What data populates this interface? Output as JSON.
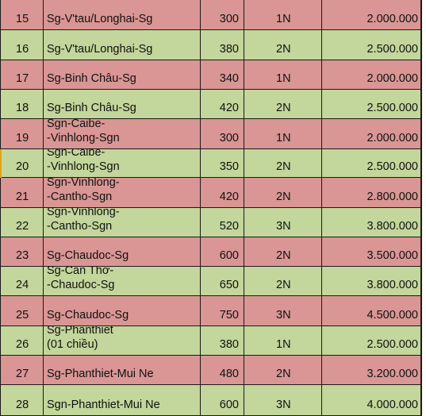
{
  "colors": {
    "pink": "#d99694",
    "green": "#c3d69b",
    "grid": "#1a1a1a"
  },
  "rows": [
    {
      "no": "15",
      "route": [
        "Sg-V'tau/Longhai-Sg"
      ],
      "km": "300",
      "days": "1N",
      "price": "2.000.000",
      "tone": "pink"
    },
    {
      "no": "16",
      "route": [
        "Sg-V'tau/Longhai-Sg"
      ],
      "km": "380",
      "days": "2N",
      "price": "2.500.000",
      "tone": "green"
    },
    {
      "no": "17",
      "route": [
        "Sg-Binh Châu-Sg"
      ],
      "km": "340",
      "days": "1N",
      "price": "2.000.000",
      "tone": "pink"
    },
    {
      "no": "18",
      "route": [
        "Sg-Binh Châu-Sg"
      ],
      "km": "420",
      "days": "2N",
      "price": "2.500.000",
      "tone": "green"
    },
    {
      "no": "19",
      "route": [
        "Sgn-Caibe-",
        "-Vinhlong-Sgn"
      ],
      "km": "300",
      "days": "1N",
      "price": "2.000.000",
      "tone": "pink"
    },
    {
      "no": "20",
      "route": [
        "Sgn-Caibe-",
        "-Vinhlong-Sgn"
      ],
      "km": "350",
      "days": "2N",
      "price": "2.500.000",
      "tone": "green"
    },
    {
      "no": "21",
      "route": [
        "Sgn-Vinhlong-",
        "-Cantho-Sgn"
      ],
      "km": "420",
      "days": "2N",
      "price": "2.800.000",
      "tone": "pink"
    },
    {
      "no": "22",
      "route": [
        "Sgn-Vinhlong-",
        "-Cantho-Sgn"
      ],
      "km": "520",
      "days": "3N",
      "price": "3.800.000",
      "tone": "green"
    },
    {
      "no": "23",
      "route": [
        "Sg-Chaudoc-Sg"
      ],
      "km": "600",
      "days": "2N",
      "price": "3.500.000",
      "tone": "pink"
    },
    {
      "no": "24",
      "route": [
        "Sg-Cần Thơ-",
        "-Chaudoc-Sg"
      ],
      "km": "650",
      "days": "2N",
      "price": "3.800.000",
      "tone": "green"
    },
    {
      "no": "25",
      "route": [
        "Sg-Chaudoc-Sg"
      ],
      "km": "750",
      "days": "3N",
      "price": "4.500.000",
      "tone": "pink"
    },
    {
      "no": "26",
      "route": [
        "Sg-Phanthiet",
        "(01 chiều)"
      ],
      "km": "380",
      "days": "1N",
      "price": "2.500.000",
      "tone": "green"
    },
    {
      "no": "27",
      "route": [
        "Sg-Phanthiet-Mui Ne"
      ],
      "km": "480",
      "days": "2N",
      "price": "3.200.000",
      "tone": "pink"
    },
    {
      "no": "28",
      "route": [
        "Sgn-Phanthiet-Mui Ne"
      ],
      "km": "600",
      "days": "3N",
      "price": "4.000.000",
      "tone": "green"
    }
  ]
}
